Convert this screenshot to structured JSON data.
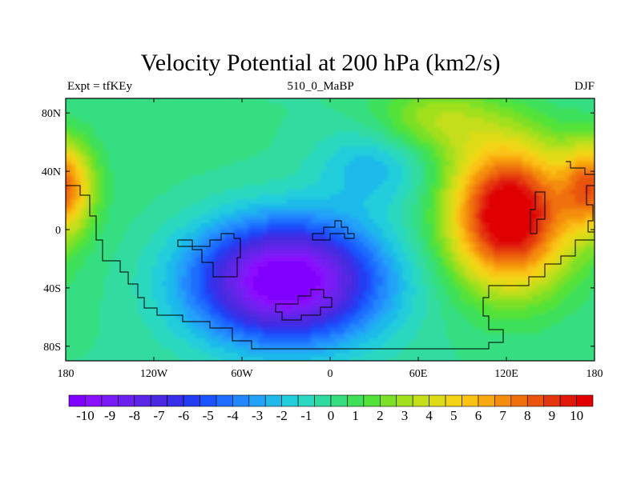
{
  "title": "Velocity Potential at 200 hPa (km2/s)",
  "subtitle_left": "Expt = tfKEy",
  "subtitle_center": "510_0_MaBP",
  "subtitle_right": "DJF",
  "chart_data": {
    "type": "heatmap",
    "title": "Velocity Potential at 200 hPa (km2/s)",
    "projection": "cylindrical-equidistant",
    "xlim": [
      -180,
      180
    ],
    "ylim": [
      -90,
      90
    ],
    "x_ticks": [
      {
        "value": -180,
        "label": "180"
      },
      {
        "value": -120,
        "label": "120W"
      },
      {
        "value": -60,
        "label": "60W"
      },
      {
        "value": 0,
        "label": "0"
      },
      {
        "value": 60,
        "label": "60E"
      },
      {
        "value": 120,
        "label": "120E"
      },
      {
        "value": 180,
        "label": "180"
      }
    ],
    "y_ticks": [
      {
        "value": 80,
        "label": "80N"
      },
      {
        "value": 40,
        "label": "40N"
      },
      {
        "value": 0,
        "label": "0"
      },
      {
        "value": -40,
        "label": "40S"
      },
      {
        "value": -80,
        "label": "80S"
      }
    ],
    "field_features": [
      {
        "lon": -25,
        "lat": -30,
        "value": -10
      },
      {
        "lon": 120,
        "lat": 20,
        "value": 10
      },
      {
        "lon": -175,
        "lat": 30,
        "value": 9
      }
    ],
    "colorbar": {
      "min": -10,
      "max": 10,
      "step": 0.5,
      "tick_labels": [
        "-10",
        "-9",
        "-8",
        "-7",
        "-6",
        "-5",
        "-4",
        "-3",
        "-2",
        "-1",
        "0",
        "1",
        "2",
        "3",
        "4",
        "5",
        "6",
        "7",
        "8",
        "9",
        "10"
      ],
      "colors": [
        "#8000ff",
        "#8a10ff",
        "#7a1cf5",
        "#6c22ee",
        "#5c26e6",
        "#4a2ae0",
        "#3a2fe8",
        "#243cf2",
        "#1a55ff",
        "#1f6eff",
        "#2288ff",
        "#22a2f8",
        "#1fb9ea",
        "#22cddc",
        "#2bd8c0",
        "#30dba0",
        "#36de80",
        "#3ee05a",
        "#52e238",
        "#7ae028",
        "#a2e01e",
        "#c4de1a",
        "#dedc18",
        "#f2d414",
        "#fac212",
        "#f8a810",
        "#f48c0e",
        "#f0700c",
        "#ea540c",
        "#e4360c",
        "#e01808",
        "#e00000"
      ]
    }
  }
}
